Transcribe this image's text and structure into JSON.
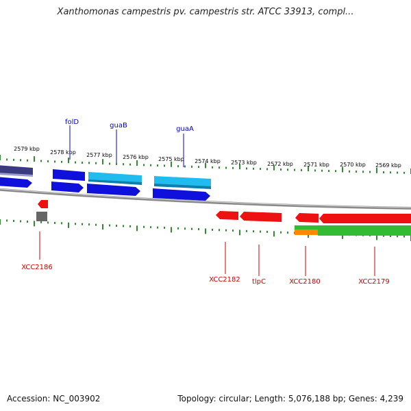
{
  "title": "Xanthomonas campestris pv. campestris str. ATCC 33913, compl...",
  "footer": {
    "accession": "Accession: NC_003902",
    "summary": "Topology: circular; Length: 5,076,188 bp; Genes: 4,239"
  },
  "ticks": [
    "2579 kbp",
    "2578 kbp",
    "2577 kbp",
    "2576 kbp",
    "2575 kbp",
    "2574 kbp",
    "2573 kbp",
    "2572 kbp",
    "2571 kbp",
    "2570 kbp",
    "2569 kbp"
  ],
  "top_labels": [
    "folD",
    "guaB",
    "guaA"
  ],
  "bottom_labels": [
    "XCC2186",
    "XCC2182",
    "tlpC",
    "XCC2180",
    "XCC2179"
  ],
  "colors": {
    "top_label": "#0000cc",
    "bottom_label": "#cc0000",
    "tick": "#2e8b2e",
    "blue_gene": "#1010dd",
    "cyan_gene": "#22bbee",
    "slate_gene": "#3a3a80",
    "red_gene": "#ee1111",
    "green_feature": "#33bb33",
    "orange_feature": "#ff8800",
    "gray_feature": "#666666",
    "backbone": "#8a8a8a"
  }
}
